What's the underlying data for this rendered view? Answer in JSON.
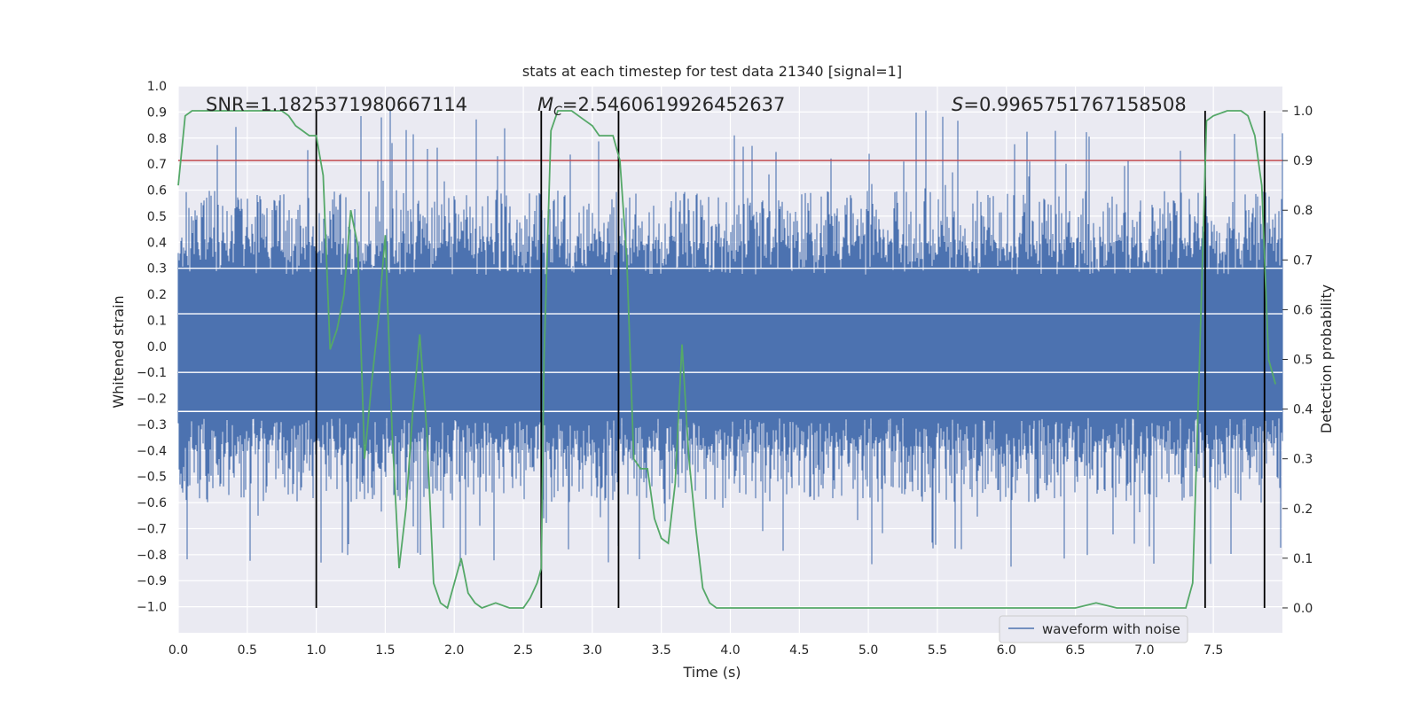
{
  "chart_data": {
    "type": "line",
    "title": "stats at each timestep for test data 21340 [signal=1]",
    "xlabel": "Time (s)",
    "ylabel": "Whitened strain",
    "ylabel_right": "Detection probability",
    "xlim": [
      0,
      8.0
    ],
    "ylim": [
      -1.1,
      1.0
    ],
    "ylim_right": [
      -0.05,
      1.05
    ],
    "x_ticks": [
      "0.0",
      "0.5",
      "1.0",
      "1.5",
      "2.0",
      "2.5",
      "3.0",
      "3.5",
      "4.0",
      "4.5",
      "5.0",
      "5.5",
      "6.0",
      "6.5",
      "7.0",
      "7.5"
    ],
    "y_ticks": [
      "1.0",
      "0.9",
      "0.8",
      "0.7",
      "0.6",
      "0.5",
      "0.4",
      "0.3",
      "0.2",
      "0.1",
      "0.0",
      "−0.1",
      "−0.2",
      "−0.3",
      "−0.4",
      "−0.5",
      "−0.6",
      "−0.7",
      "−0.8",
      "−0.9",
      "−1.0"
    ],
    "y_ticks_right": [
      "1.0",
      "0.9",
      "0.8",
      "0.7",
      "0.6",
      "0.5",
      "0.4",
      "0.3",
      "0.2",
      "0.1",
      "0.0"
    ],
    "grid": true,
    "legend_position": "lower-right",
    "annotations": {
      "snr": "SNR=1.1825371980667114",
      "mc_symbol": "M",
      "mc_sub": "C",
      "mc_value": "=2.5460619926452637",
      "s_symbol": "S",
      "s_value": "=0.9965751767158508"
    },
    "threshold": 0.9,
    "event_lines_x": [
      1.0,
      2.63,
      3.19,
      7.44,
      7.87
    ],
    "series": [
      {
        "name": "waveform with noise",
        "kind": "strain",
        "color": "#4c72b0",
        "spike_range": [
          -0.85,
          0.92
        ],
        "dense_range": [
          -0.35,
          0.35
        ]
      },
      {
        "kind": "probability",
        "color": "#55a868",
        "x": [
          0.0,
          0.05,
          0.1,
          0.15,
          0.25,
          0.35,
          0.45,
          0.55,
          0.65,
          0.75,
          0.8,
          0.85,
          0.9,
          0.95,
          1.0,
          1.05,
          1.1,
          1.15,
          1.2,
          1.25,
          1.3,
          1.35,
          1.4,
          1.45,
          1.5,
          1.55,
          1.6,
          1.65,
          1.7,
          1.75,
          1.8,
          1.85,
          1.9,
          1.95,
          2.0,
          2.05,
          2.1,
          2.15,
          2.2,
          2.3,
          2.4,
          2.5,
          2.55,
          2.6,
          2.63,
          2.65,
          2.7,
          2.75,
          2.8,
          2.85,
          2.9,
          2.95,
          3.0,
          3.05,
          3.1,
          3.15,
          3.2,
          3.25,
          3.3,
          3.35,
          3.4,
          3.45,
          3.5,
          3.55,
          3.6,
          3.65,
          3.7,
          3.75,
          3.8,
          3.85,
          3.9,
          4.0,
          4.5,
          5.0,
          5.5,
          5.8,
          6.0,
          6.2,
          6.5,
          6.65,
          6.8,
          7.0,
          7.2,
          7.3,
          7.35,
          7.4,
          7.45,
          7.5,
          7.6,
          7.7,
          7.75,
          7.8,
          7.85,
          7.9,
          7.95
        ],
        "y": [
          0.85,
          0.99,
          1.0,
          1.0,
          1.0,
          1.0,
          1.0,
          1.0,
          1.0,
          1.0,
          0.99,
          0.97,
          0.96,
          0.95,
          0.95,
          0.87,
          0.52,
          0.56,
          0.63,
          0.8,
          0.73,
          0.3,
          0.45,
          0.58,
          0.75,
          0.35,
          0.08,
          0.2,
          0.4,
          0.55,
          0.36,
          0.05,
          0.01,
          0.0,
          0.05,
          0.1,
          0.03,
          0.01,
          0.0,
          0.01,
          0.0,
          0.0,
          0.02,
          0.05,
          0.08,
          0.5,
          0.96,
          1.0,
          1.0,
          1.0,
          0.99,
          0.98,
          0.97,
          0.95,
          0.95,
          0.95,
          0.9,
          0.7,
          0.3,
          0.28,
          0.28,
          0.18,
          0.14,
          0.13,
          0.25,
          0.53,
          0.3,
          0.16,
          0.04,
          0.01,
          0.0,
          0.0,
          0.0,
          0.0,
          0.0,
          0.0,
          0.0,
          0.0,
          0.0,
          0.01,
          0.0,
          0.0,
          0.0,
          0.0,
          0.05,
          0.5,
          0.98,
          0.99,
          1.0,
          1.0,
          0.99,
          0.95,
          0.85,
          0.5,
          0.45
        ]
      }
    ]
  }
}
